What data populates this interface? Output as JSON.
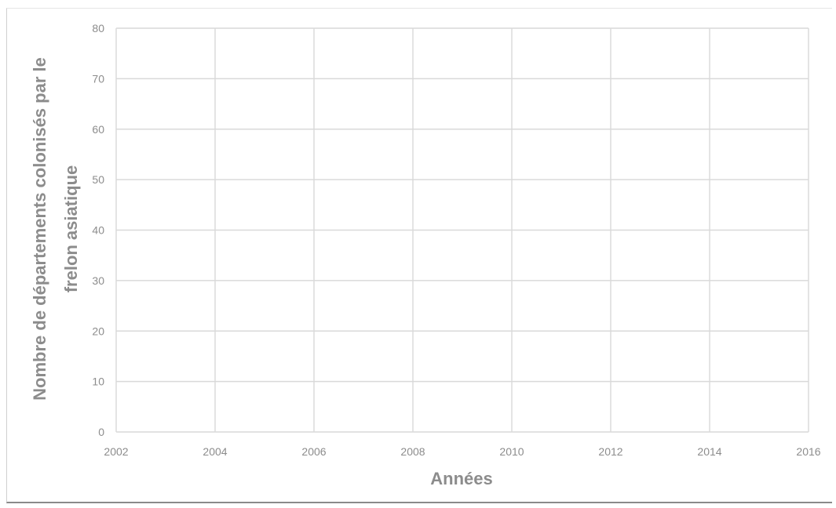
{
  "chart_data": {
    "type": "scatter",
    "title": "",
    "xlabel": "Années",
    "ylabel_lines": [
      "Nombre de départements colonisés par le",
      "frelon asiatique"
    ],
    "xlim": [
      2002,
      2016
    ],
    "ylim": [
      0,
      80
    ],
    "x_ticks": [
      "2002",
      "2004",
      "2006",
      "2008",
      "2010",
      "2012",
      "2014",
      "2016"
    ],
    "y_ticks": [
      "0",
      "10",
      "20",
      "30",
      "40",
      "50",
      "60",
      "70",
      "80"
    ],
    "grid": true,
    "series": [],
    "colors": {
      "grid": "#d9d9d9",
      "text": "#8c8c8c"
    }
  }
}
